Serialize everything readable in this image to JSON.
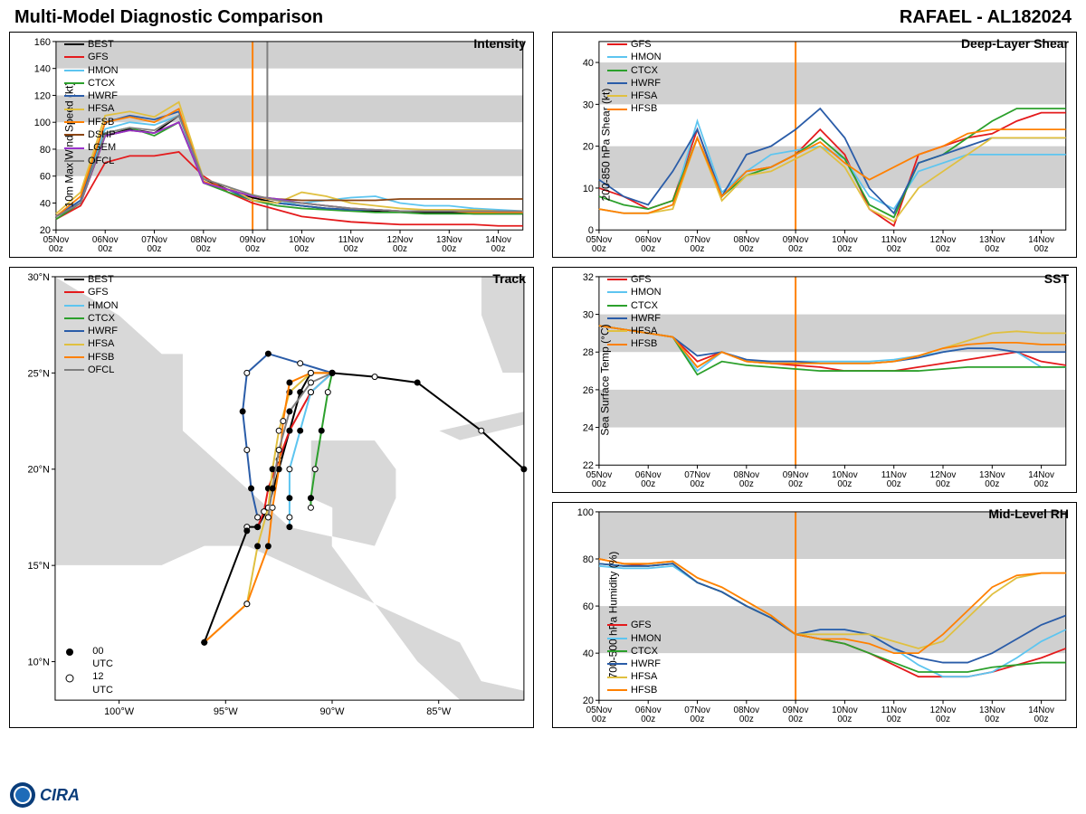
{
  "header": {
    "title_left": "Multi-Model Diagnostic Comparison",
    "title_right": "RAFAEL - AL182024"
  },
  "logo_text": "CIRA",
  "x_axis": {
    "labels": [
      "05Nov",
      "06Nov",
      "07Nov",
      "08Nov",
      "09Nov",
      "10Nov",
      "11Nov",
      "12Nov",
      "13Nov",
      "14Nov"
    ],
    "sublabel": "00z"
  },
  "models": {
    "BEST": "#000000",
    "GFS": "#e41a1c",
    "HMON": "#5dc5f0",
    "CTCX": "#2ca02c",
    "HWRF": "#2a5ca8",
    "HFSA": "#e0c040",
    "HFSB": "#ff8000",
    "DSHP": "#8b4513",
    "LGEM": "#9932cc",
    "OFCL": "#808080"
  },
  "panels": {
    "intensity": {
      "title": "Intensity",
      "ylabel": "10m Max Wind Speed (kt)",
      "ylim": [
        20,
        160
      ],
      "ytick": 20,
      "bands": [
        [
          60,
          80
        ],
        [
          100,
          120
        ],
        [
          140,
          160
        ]
      ],
      "vlines": {
        "orange": 4.0,
        "gray": 4.3
      },
      "legend_pos": "top-left",
      "legend": [
        "BEST",
        "GFS",
        "HMON",
        "CTCX",
        "HWRF",
        "HFSA",
        "HFSB",
        "DSHP",
        "LGEM",
        "OFCL"
      ],
      "series": {
        "BEST": [
          30,
          40,
          90,
          95,
          92,
          105,
          58,
          50,
          44,
          40,
          38,
          36,
          35,
          34,
          34,
          33,
          33,
          32,
          32,
          32
        ],
        "GFS": [
          28,
          38,
          70,
          75,
          75,
          78,
          60,
          48,
          40,
          35,
          30,
          28,
          26,
          25,
          24,
          24,
          24,
          24,
          23,
          23
        ],
        "HMON": [
          30,
          42,
          95,
          100,
          98,
          105,
          55,
          50,
          42,
          40,
          40,
          42,
          44,
          45,
          40,
          38,
          38,
          36,
          35,
          34
        ],
        "CTCX": [
          28,
          40,
          92,
          96,
          90,
          100,
          55,
          48,
          42,
          38,
          36,
          35,
          34,
          33,
          33,
          32,
          32,
          32,
          32,
          32
        ],
        "HWRF": [
          30,
          42,
          100,
          105,
          102,
          108,
          56,
          50,
          42,
          40,
          38,
          36,
          35,
          35,
          34,
          34,
          34,
          34,
          33,
          33
        ],
        "HFSA": [
          32,
          48,
          105,
          108,
          104,
          115,
          58,
          52,
          42,
          40,
          48,
          45,
          40,
          38,
          36,
          35,
          35,
          35,
          34,
          34
        ],
        "HFSB": [
          30,
          45,
          100,
          104,
          100,
          110,
          56,
          50,
          45,
          42,
          40,
          38,
          36,
          35,
          34,
          34,
          34,
          33,
          33,
          33
        ],
        "DSHP": [
          30,
          40,
          90,
          94,
          92,
          100,
          55,
          50,
          45,
          43,
          42,
          42,
          42,
          42,
          43,
          43,
          43,
          43,
          43,
          43
        ],
        "LGEM": [
          30,
          40,
          90,
          94,
          92,
          100,
          55,
          50,
          45,
          43,
          40,
          38,
          36,
          35,
          34,
          34,
          34,
          34,
          34,
          34
        ],
        "OFCL": [
          30,
          40,
          92,
          96,
          94,
          105,
          58,
          52,
          46,
          42,
          40,
          38,
          36,
          35,
          34,
          34,
          34,
          34,
          34,
          34
        ]
      }
    },
    "shear": {
      "title": "Deep-Layer Shear",
      "ylabel": "200-850 hPa Shear (kt)",
      "ylim": [
        0,
        45
      ],
      "ytick": 10,
      "bands": [
        [
          10,
          20
        ],
        [
          30,
          40
        ]
      ],
      "vlines": {
        "orange": 4.0
      },
      "legend_pos": "top-left",
      "legend": [
        "GFS",
        "HMON",
        "CTCX",
        "HWRF",
        "HFSA",
        "HFSB"
      ],
      "series": {
        "GFS": [
          10,
          8,
          5,
          7,
          24,
          8,
          14,
          15,
          18,
          24,
          18,
          5,
          1,
          18,
          20,
          22,
          23,
          26,
          28,
          28
        ],
        "HMON": [
          5,
          4,
          4,
          6,
          26,
          9,
          14,
          18,
          19,
          20,
          17,
          8,
          5,
          14,
          16,
          18,
          18,
          18,
          18,
          18
        ],
        "CTCX": [
          8,
          6,
          5,
          7,
          22,
          8,
          13,
          15,
          18,
          22,
          17,
          6,
          3,
          16,
          18,
          22,
          26,
          29,
          29,
          29
        ],
        "HWRF": [
          12,
          8,
          6,
          14,
          24,
          8,
          18,
          20,
          24,
          29,
          22,
          10,
          4,
          16,
          18,
          20,
          22,
          22,
          22,
          22
        ],
        "HFSA": [
          5,
          4,
          4,
          5,
          22,
          7,
          13,
          14,
          17,
          20,
          15,
          5,
          2,
          10,
          14,
          18,
          22,
          22,
          22,
          22
        ],
        "HFSB": [
          5,
          4,
          4,
          6,
          22,
          8,
          14,
          15,
          18,
          21,
          16,
          12,
          15,
          18,
          20,
          23,
          24,
          24,
          24,
          24
        ]
      }
    },
    "sst": {
      "title": "SST",
      "ylabel": "Sea Surface Temp (°C)",
      "ylim": [
        22,
        32
      ],
      "ytick": 2,
      "bands": [
        [
          24,
          26
        ],
        [
          28,
          30
        ]
      ],
      "vlines": {
        "orange": 4.0
      },
      "legend_pos": "top-left",
      "legend": [
        "GFS",
        "HMON",
        "CTCX",
        "HWRF",
        "HFSA",
        "HFSB"
      ],
      "series": {
        "GFS": [
          29.4,
          29.2,
          29.0,
          28.8,
          27.5,
          28.0,
          27.5,
          27.4,
          27.3,
          27.2,
          27.0,
          27.0,
          27.0,
          27.2,
          27.4,
          27.6,
          27.8,
          28.0,
          27.5,
          27.3
        ],
        "HMON": [
          29.4,
          29.2,
          29.0,
          28.8,
          27.0,
          28.0,
          27.5,
          27.5,
          27.5,
          27.5,
          27.5,
          27.5,
          27.6,
          27.8,
          28.0,
          28.2,
          28.2,
          28.0,
          27.2,
          27.2
        ],
        "CTCX": [
          29.4,
          29.2,
          29.0,
          28.8,
          26.8,
          27.5,
          27.3,
          27.2,
          27.1,
          27.0,
          27.0,
          27.0,
          27.0,
          27.0,
          27.1,
          27.2,
          27.2,
          27.2,
          27.2,
          27.2
        ],
        "HWRF": [
          29.4,
          29.2,
          29.0,
          28.8,
          27.8,
          28.0,
          27.6,
          27.5,
          27.5,
          27.4,
          27.4,
          27.4,
          27.5,
          27.7,
          28.0,
          28.2,
          28.2,
          28.0,
          28.0,
          28.0
        ],
        "HFSA": [
          29.4,
          29.2,
          29.0,
          28.8,
          27.2,
          28.0,
          27.5,
          27.4,
          27.4,
          27.4,
          27.4,
          27.4,
          27.5,
          27.8,
          28.2,
          28.6,
          29.0,
          29.1,
          29.0,
          29.0
        ],
        "HFSB": [
          29.4,
          29.2,
          29.0,
          28.8,
          27.2,
          28.0,
          27.5,
          27.4,
          27.4,
          27.4,
          27.4,
          27.4,
          27.5,
          27.8,
          28.2,
          28.4,
          28.5,
          28.5,
          28.4,
          28.4
        ]
      }
    },
    "rh": {
      "title": "Mid-Level RH",
      "ylabel": "700-500 hPa Humidity (%)",
      "ylim": [
        20,
        100
      ],
      "ytick": 20,
      "bands": [
        [
          40,
          60
        ],
        [
          80,
          100
        ]
      ],
      "vlines": {
        "orange": 4.0
      },
      "legend_pos": "bottom-left",
      "legend": [
        "GFS",
        "HMON",
        "CTCX",
        "HWRF",
        "HFSA",
        "HFSB"
      ],
      "series": {
        "GFS": [
          80,
          78,
          77,
          78,
          70,
          66,
          60,
          55,
          48,
          46,
          44,
          40,
          35,
          30,
          30,
          30,
          32,
          35,
          38,
          42
        ],
        "HMON": [
          77,
          76,
          76,
          77,
          70,
          66,
          60,
          55,
          48,
          50,
          50,
          48,
          42,
          35,
          30,
          30,
          32,
          38,
          45,
          50
        ],
        "CTCX": [
          78,
          77,
          77,
          78,
          70,
          66,
          60,
          55,
          48,
          46,
          44,
          40,
          36,
          32,
          32,
          32,
          34,
          35,
          36,
          36
        ],
        "HWRF": [
          78,
          77,
          77,
          78,
          70,
          66,
          60,
          55,
          48,
          50,
          50,
          48,
          42,
          38,
          36,
          36,
          40,
          46,
          52,
          56
        ],
        "HFSA": [
          80,
          78,
          78,
          79,
          72,
          68,
          62,
          56,
          48,
          48,
          48,
          48,
          45,
          42,
          45,
          55,
          65,
          72,
          74,
          74
        ],
        "HFSB": [
          80,
          78,
          78,
          79,
          72,
          68,
          62,
          56,
          48,
          46,
          46,
          44,
          40,
          40,
          48,
          58,
          68,
          73,
          74,
          74
        ]
      }
    }
  },
  "track": {
    "title": "Track",
    "legend_pos": "top-left",
    "legend": [
      "BEST",
      "GFS",
      "HMON",
      "CTCX",
      "HWRF",
      "HFSA",
      "HFSB",
      "OFCL"
    ],
    "lon_range": [
      -103,
      -81
    ],
    "lat_range": [
      8,
      30
    ],
    "lon_ticks": [
      -100,
      -95,
      -90,
      -85
    ],
    "lat_ticks": [
      10,
      15,
      20,
      25,
      30
    ],
    "lon_labels": [
      "100°W",
      "95°W",
      "90°W",
      "85°W"
    ],
    "lat_labels": [
      "10°N",
      "15°N",
      "20°N",
      "25°N",
      "30°N"
    ],
    "marker_legend": {
      "filled": "00 UTC",
      "open": "12 UTC"
    },
    "tracks": {
      "BEST": [
        [
          -81,
          20
        ],
        [
          -83,
          22
        ],
        [
          -86,
          24.5
        ],
        [
          -88,
          24.8
        ],
        [
          -90,
          25
        ],
        [
          -91,
          25
        ],
        [
          -91.5,
          24
        ],
        [
          -92,
          22
        ],
        [
          -92.5,
          20
        ],
        [
          -93,
          18
        ],
        [
          -93.5,
          17
        ],
        [
          -94,
          17
        ],
        [
          -94,
          16.8
        ],
        [
          -96,
          11
        ]
      ],
      "GFS": [
        [
          -90,
          25
        ],
        [
          -91,
          24
        ],
        [
          -92,
          22
        ],
        [
          -92.5,
          20.5
        ],
        [
          -93,
          19
        ],
        [
          -93.2,
          17.8
        ],
        [
          -93.5,
          17
        ]
      ],
      "HMON": [
        [
          -90,
          25
        ],
        [
          -91,
          24
        ],
        [
          -91.5,
          22
        ],
        [
          -92,
          20
        ],
        [
          -92,
          18.5
        ],
        [
          -92,
          17.5
        ],
        [
          -92,
          17
        ]
      ],
      "CTCX": [
        [
          -90,
          25
        ],
        [
          -90.2,
          24
        ],
        [
          -90.5,
          22
        ],
        [
          -90.8,
          20
        ],
        [
          -91,
          18.5
        ],
        [
          -91,
          18
        ],
        [
          -91,
          18.5
        ]
      ],
      "HWRF": [
        [
          -90,
          25
        ],
        [
          -91.5,
          25.5
        ],
        [
          -93,
          26
        ],
        [
          -94,
          25
        ],
        [
          -94.2,
          23
        ],
        [
          -94,
          21
        ],
        [
          -93.8,
          19
        ],
        [
          -93.5,
          17.5
        ]
      ],
      "HFSA": [
        [
          -90,
          25
        ],
        [
          -91,
          25
        ],
        [
          -92,
          24
        ],
        [
          -92.5,
          22
        ],
        [
          -92.8,
          20
        ],
        [
          -93,
          18
        ],
        [
          -93.5,
          16
        ],
        [
          -94,
          13
        ],
        [
          -96,
          11
        ]
      ],
      "HFSB": [
        [
          -90,
          25
        ],
        [
          -91,
          25
        ],
        [
          -92,
          24.5
        ],
        [
          -92.3,
          22.5
        ],
        [
          -92.5,
          20
        ],
        [
          -92.8,
          18
        ],
        [
          -93,
          16
        ],
        [
          -94,
          13
        ],
        [
          -96,
          11
        ]
      ],
      "OFCL": [
        [
          -90,
          25
        ],
        [
          -91,
          24.5
        ],
        [
          -92,
          23
        ],
        [
          -92.5,
          21
        ],
        [
          -92.8,
          19
        ],
        [
          -93,
          17.5
        ]
      ]
    }
  }
}
